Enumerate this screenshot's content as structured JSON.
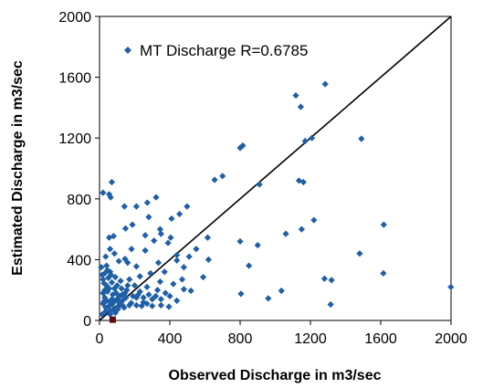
{
  "chart_data": {
    "type": "scatter",
    "xlabel": "Observed Discharge in m3/sec",
    "ylabel": "Estimated  Discharge in m3/sec",
    "xlim": [
      0,
      2000
    ],
    "ylim": [
      0,
      2000
    ],
    "xticks": [
      "0",
      "400",
      "800",
      "1200",
      "1600",
      "2000"
    ],
    "yticks": [
      "0",
      "400",
      "800",
      "1200",
      "1600",
      "2000"
    ],
    "grid": false,
    "legend_position": "top-left",
    "reference_line": {
      "from": [
        0,
        0
      ],
      "to": [
        2000,
        2000
      ],
      "color": "#000000"
    },
    "series": [
      {
        "name": "MT Discharge  R=0.6785",
        "color": "#1f5fa6",
        "marker": "diamond",
        "points": [
          [
            1999,
            220
          ],
          [
            1284,
            1555
          ],
          [
            1117,
            1480
          ],
          [
            1145,
            1405
          ],
          [
            1490,
            1195
          ],
          [
            1208,
            1200
          ],
          [
            1170,
            1180
          ],
          [
            815,
            1150
          ],
          [
            800,
            1135
          ],
          [
            700,
            950
          ],
          [
            655,
            925
          ],
          [
            1135,
            920
          ],
          [
            1160,
            910
          ],
          [
            910,
            895
          ],
          [
            70,
            910
          ],
          [
            20,
            840
          ],
          [
            55,
            830
          ],
          [
            63,
            810
          ],
          [
            322,
            810
          ],
          [
            272,
            775
          ],
          [
            210,
            750
          ],
          [
            142,
            750
          ],
          [
            498,
            750
          ],
          [
            455,
            700
          ],
          [
            280,
            680
          ],
          [
            410,
            670
          ],
          [
            187,
            630
          ],
          [
            1617,
            630
          ],
          [
            1220,
            660
          ],
          [
            148,
            605
          ],
          [
            345,
            600
          ],
          [
            350,
            570
          ],
          [
            80,
            555
          ],
          [
            55,
            545
          ],
          [
            260,
            560
          ],
          [
            405,
            545
          ],
          [
            310,
            525
          ],
          [
            800,
            520
          ],
          [
            1150,
            600
          ],
          [
            1060,
            570
          ],
          [
            900,
            495
          ],
          [
            615,
            545
          ],
          [
            390,
            510
          ],
          [
            550,
            470
          ],
          [
            182,
            470
          ],
          [
            260,
            460
          ],
          [
            440,
            430
          ],
          [
            510,
            420
          ],
          [
            620,
            400
          ],
          [
            145,
            405
          ],
          [
            1480,
            440
          ],
          [
            440,
            395
          ],
          [
            335,
            380
          ],
          [
            160,
            380
          ],
          [
            850,
            360
          ],
          [
            210,
            355
          ],
          [
            480,
            350
          ],
          [
            1615,
            310
          ],
          [
            1280,
            275
          ],
          [
            1320,
            265
          ],
          [
            370,
            320
          ],
          [
            290,
            310
          ],
          [
            230,
            290
          ],
          [
            590,
            285
          ],
          [
            470,
            270
          ],
          [
            170,
            270
          ],
          [
            345,
            255
          ],
          [
            420,
            240
          ],
          [
            200,
            230
          ],
          [
            270,
            220
          ],
          [
            330,
            200
          ],
          [
            480,
            205
          ],
          [
            520,
            195
          ],
          [
            155,
            200
          ],
          [
            230,
            190
          ],
          [
            375,
            180
          ],
          [
            1035,
            195
          ],
          [
            805,
            175
          ],
          [
            960,
            145
          ],
          [
            1315,
            105
          ],
          [
            440,
            130
          ],
          [
            300,
            140
          ],
          [
            250,
            120
          ],
          [
            210,
            150
          ],
          [
            130,
            170
          ],
          [
            100,
            230
          ],
          [
            120,
            260
          ],
          [
            90,
            285
          ],
          [
            60,
            320
          ],
          [
            40,
            360
          ],
          [
            30,
            310
          ],
          [
            50,
            280
          ],
          [
            70,
            250
          ],
          [
            85,
            210
          ],
          [
            40,
            230
          ],
          [
            20,
            270
          ],
          [
            45,
            190
          ],
          [
            75,
            170
          ],
          [
            100,
            140
          ],
          [
            60,
            120
          ],
          [
            30,
            150
          ],
          [
            20,
            110
          ],
          [
            50,
            90
          ],
          [
            80,
            75
          ],
          [
            110,
            95
          ],
          [
            140,
            85
          ],
          [
            35,
            60
          ],
          [
            60,
            40
          ],
          [
            90,
            50
          ],
          [
            15,
            40
          ],
          [
            20,
            180
          ],
          [
            30,
            200
          ],
          [
            70,
            140
          ],
          [
            95,
            180
          ],
          [
            110,
            120
          ],
          [
            130,
            130
          ],
          [
            55,
            210
          ],
          [
            25,
            245
          ],
          [
            65,
            300
          ],
          [
            45,
            330
          ],
          [
            180,
            115
          ],
          [
            210,
            100
          ],
          [
            240,
            95
          ],
          [
            270,
            110
          ],
          [
            300,
            95
          ],
          [
            350,
            100
          ],
          [
            395,
            90
          ],
          [
            170,
            100
          ],
          [
            60,
            100
          ],
          [
            40,
            130
          ],
          [
            115,
            160
          ],
          [
            150,
            150
          ],
          [
            75,
            110
          ],
          [
            105,
            75
          ],
          [
            35,
            85
          ],
          [
            125,
            210
          ],
          [
            160,
            230
          ],
          [
            145,
            180
          ],
          [
            190,
            160
          ],
          [
            220,
            170
          ],
          [
            250,
            150
          ],
          [
            280,
            170
          ],
          [
            320,
            160
          ],
          [
            350,
            140
          ],
          [
            400,
            160
          ],
          [
            60,
            60
          ],
          [
            85,
            130
          ],
          [
            130,
            100
          ],
          [
            25,
            125
          ],
          [
            15,
            300
          ],
          [
            10,
            350
          ],
          [
            35,
            420
          ],
          [
            60,
            470
          ],
          [
            85,
            440
          ],
          [
            110,
            390
          ]
        ]
      },
      {
        "name": "",
        "color": "#5a0f0f",
        "marker": "square",
        "points": [
          [
            75,
            5
          ]
        ]
      }
    ]
  }
}
